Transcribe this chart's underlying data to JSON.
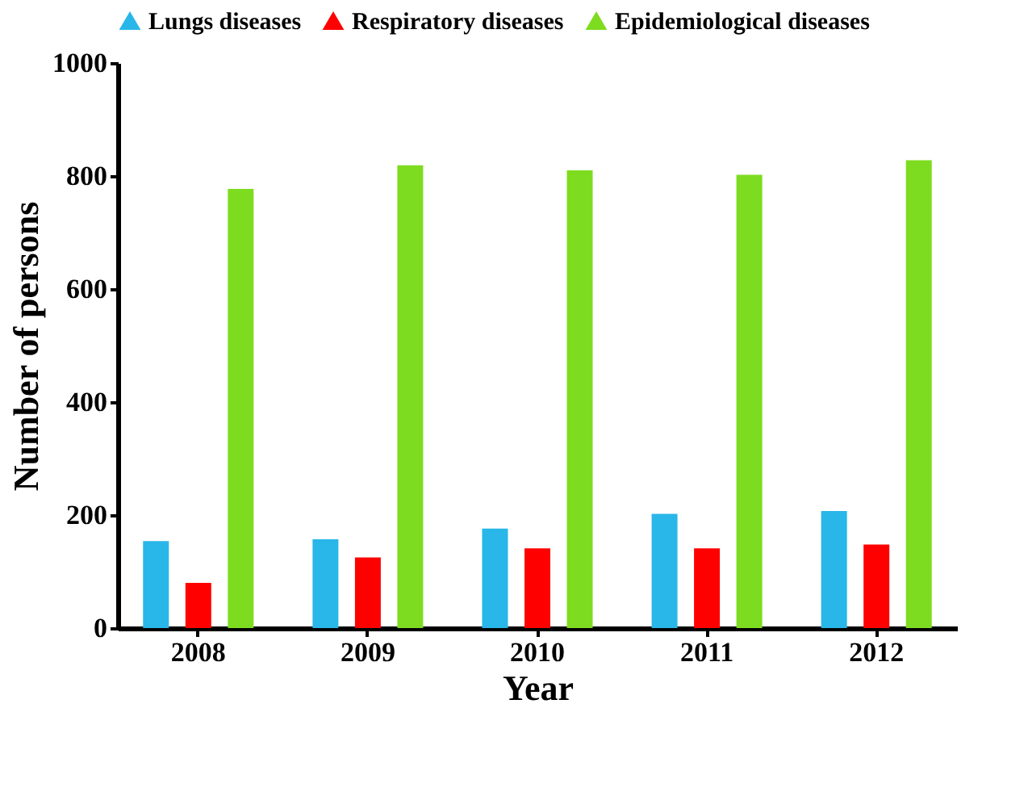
{
  "chart_data": {
    "type": "bar",
    "xlabel": "Year",
    "ylabel": "Number of persons",
    "categories": [
      "2008",
      "2009",
      "2010",
      "2011",
      "2012"
    ],
    "series": [
      {
        "name": "Lungs diseases",
        "color": "#29b6e8",
        "values": [
          154,
          157,
          176,
          202,
          207
        ]
      },
      {
        "name": "Respiratory diseases",
        "color": "#ff0000",
        "values": [
          80,
          125,
          141,
          141,
          148
        ]
      },
      {
        "name": "Epidemiological diseases",
        "color": "#7ddc1f",
        "values": [
          777,
          819,
          810,
          802,
          828
        ]
      }
    ],
    "ylim": [
      0,
      1000
    ],
    "yticks": [
      0,
      200,
      400,
      600,
      800,
      1000
    ],
    "grid": false,
    "legend": "top"
  }
}
